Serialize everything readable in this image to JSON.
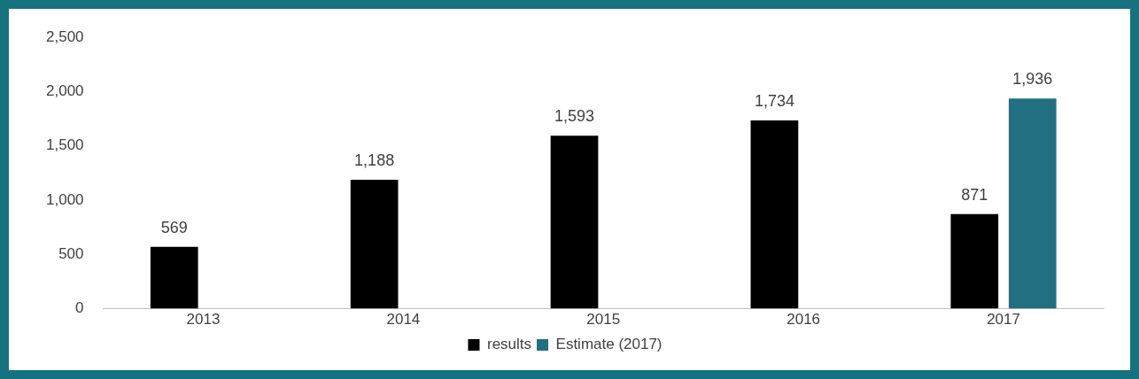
{
  "chart_data": {
    "type": "bar",
    "categories": [
      "2013",
      "2014",
      "2015",
      "2016",
      "2017"
    ],
    "series": [
      {
        "name": "results",
        "color": "#000000",
        "values": [
          569,
          1188,
          1593,
          1734,
          871
        ],
        "value_labels": [
          "569",
          "1,188",
          "1,593",
          "1,734",
          "871"
        ]
      },
      {
        "name": "Estimate (2017)",
        "color": "#216f81",
        "values": [
          null,
          null,
          null,
          null,
          1936
        ],
        "value_labels": [
          null,
          null,
          null,
          null,
          "1,936"
        ]
      }
    ],
    "ylim": [
      0,
      2500
    ],
    "yticks": [
      {
        "value": 0,
        "label": "0"
      },
      {
        "value": 500,
        "label": "500"
      },
      {
        "value": 1000,
        "label": "1,000"
      },
      {
        "value": 1500,
        "label": "1,500"
      },
      {
        "value": 2000,
        "label": "2,000"
      },
      {
        "value": 2500,
        "label": "2,500"
      }
    ],
    "grid": false,
    "legend": "bottom"
  }
}
